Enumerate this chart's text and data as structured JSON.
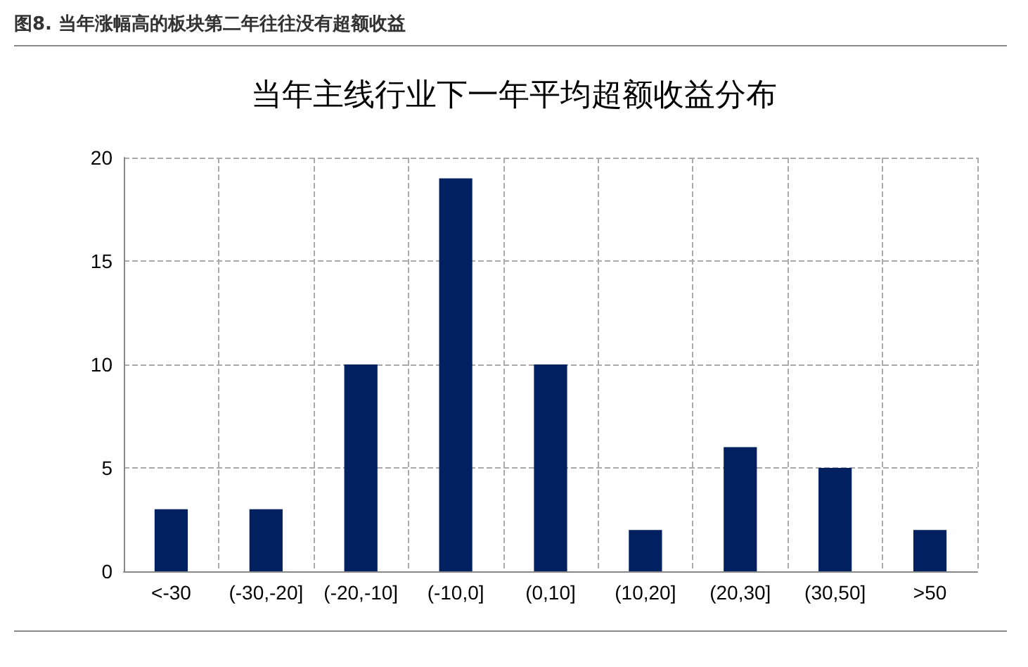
{
  "chart_data": {
    "type": "bar",
    "title": "图8. 当年涨幅高的板块第二年往往没有超额收益",
    "subtitle": "当年主线行业下一年平均超额收益分布",
    "categories": [
      "<-30",
      "(-30,-20]",
      "(-20,-10]",
      "(-10,0]",
      "(0,10]",
      "(10,20]",
      "(20,30]",
      "(30,50]",
      ">50"
    ],
    "values": [
      3,
      3,
      10,
      19,
      10,
      2,
      6,
      5,
      2
    ],
    "color": "#002060",
    "ylim": [
      0,
      20
    ],
    "yticks": [
      0,
      5,
      10,
      15,
      20
    ],
    "grid": true
  }
}
